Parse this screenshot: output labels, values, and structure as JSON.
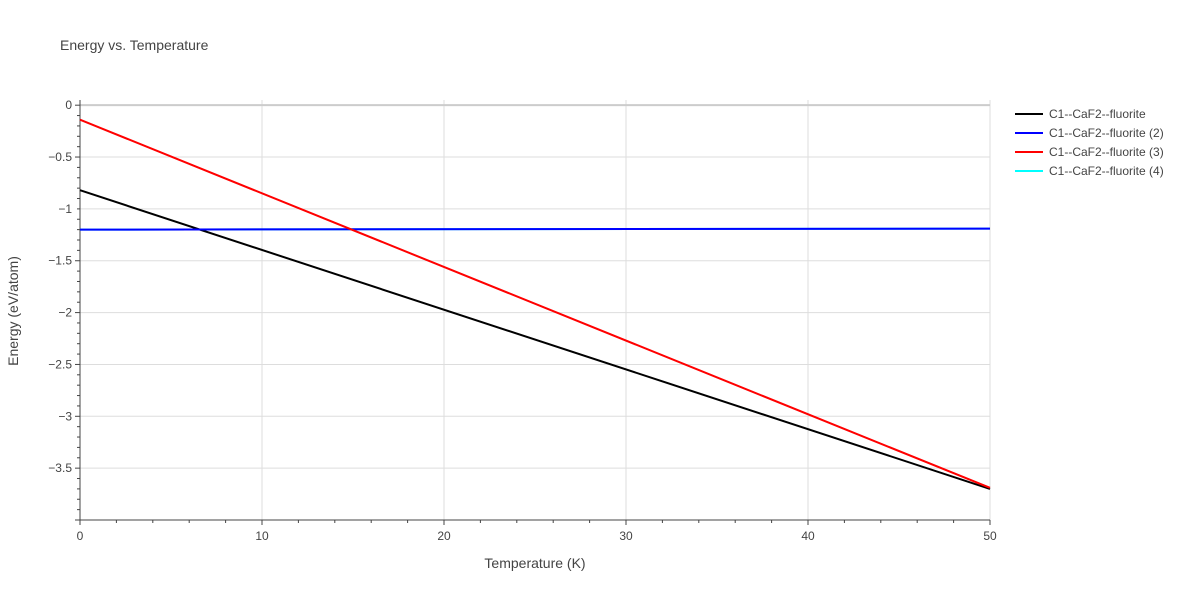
{
  "chart_data": {
    "type": "line",
    "title": "Energy vs. Temperature",
    "xlabel": "Temperature (K)",
    "ylabel": "Energy (eV/atom)",
    "xlim": [
      0,
      50
    ],
    "ylim": [
      -4.0,
      0.05
    ],
    "xticks": [
      0,
      10,
      20,
      30,
      40,
      50
    ],
    "xtick_labels": [
      "0",
      "10",
      "20",
      "30",
      "40",
      "50"
    ],
    "yticks": [
      0,
      -0.5,
      -1,
      -1.5,
      -2,
      -2.5,
      -3,
      -3.5
    ],
    "ytick_labels": [
      "0",
      "−0.5",
      "−1",
      "−1.5",
      "−2",
      "−2.5",
      "−3",
      "−3.5"
    ],
    "grid": true,
    "legend_position": "top-right",
    "series": [
      {
        "name": "C1--CaF2--fluorite",
        "color": "#000000",
        "x": [
          0,
          50
        ],
        "y": [
          -0.82,
          -3.7
        ]
      },
      {
        "name": "C1--CaF2--fluorite (2)",
        "color": "#0000ff",
        "x": [
          0,
          50
        ],
        "y": [
          -1.2,
          -1.19
        ]
      },
      {
        "name": "C1--CaF2--fluorite (3)",
        "color": "#ff0000",
        "x": [
          0,
          50
        ],
        "y": [
          -0.14,
          -3.69
        ]
      },
      {
        "name": "C1--CaF2--fluorite (4)",
        "color": "#00ffff",
        "x": [
          0,
          50
        ],
        "y": [
          -1.2,
          -1.19
        ]
      }
    ]
  }
}
